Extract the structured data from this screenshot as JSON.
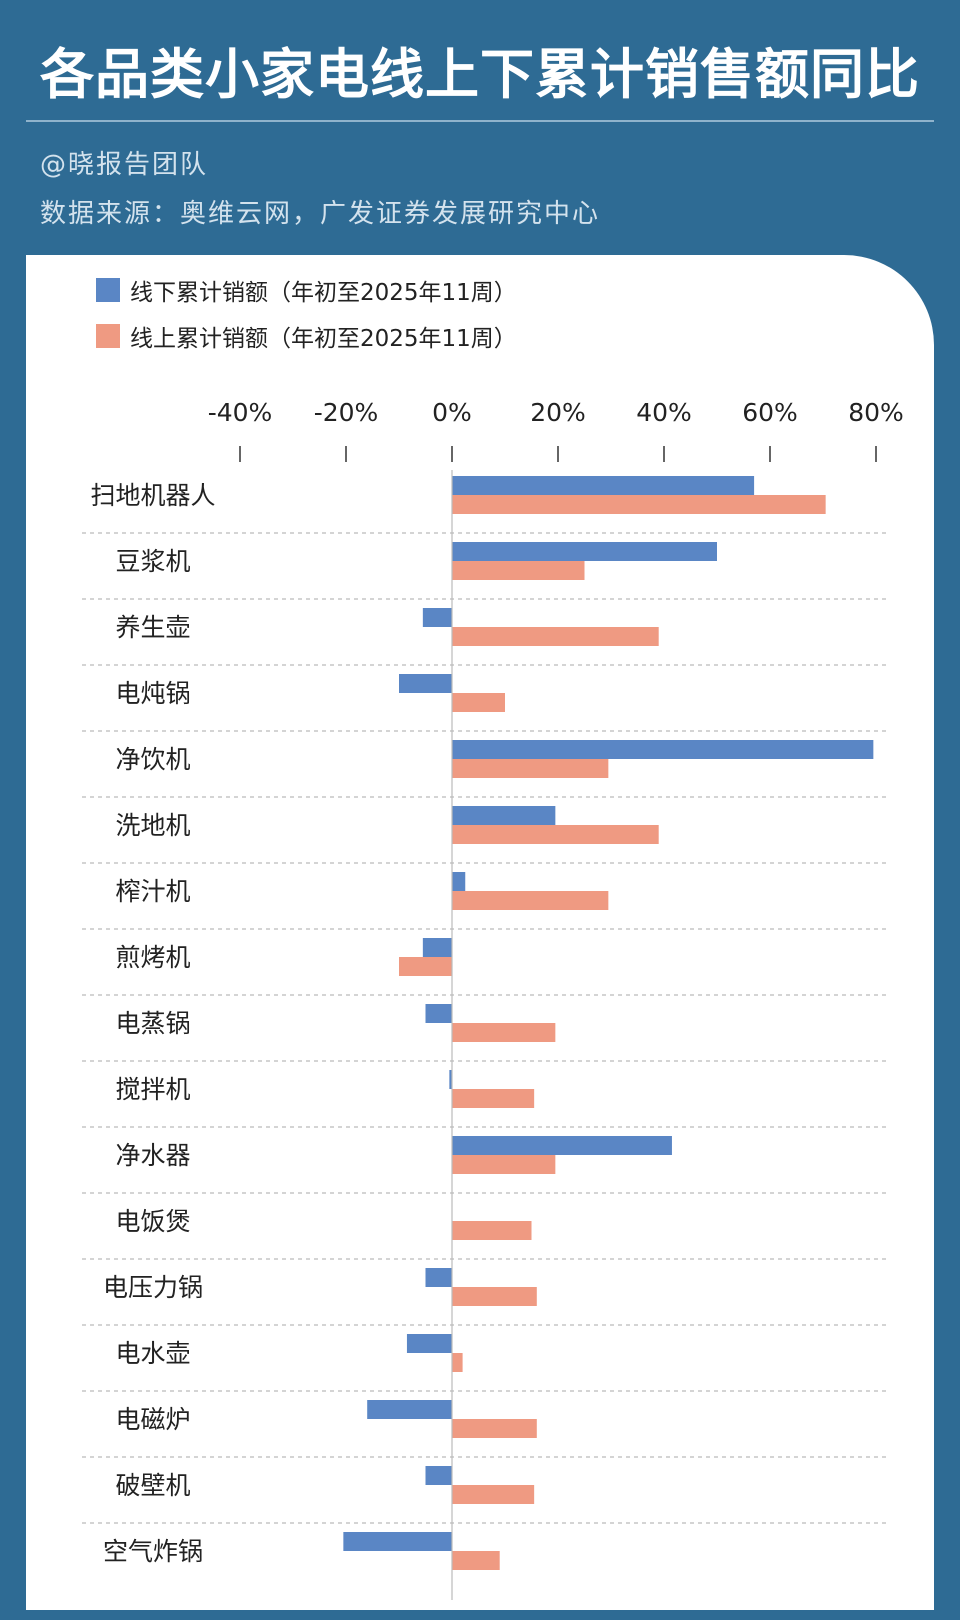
{
  "title": "各品类小家电线上下累计销售额同比",
  "author": "@晓报告团队",
  "source": "数据来源：奥维云网，广发证券发展研究中心",
  "colors": {
    "offline": "#5a86c5",
    "online": "#ef9a82",
    "background": "#2e6b94"
  },
  "chart_data": {
    "type": "bar",
    "orientation": "horizontal",
    "categories": [
      "扫地机器人",
      "豆浆机",
      "养生壶",
      "电炖锅",
      "净饮机",
      "洗地机",
      "榨汁机",
      "煎烤机",
      "电蒸锅",
      "搅拌机",
      "净水器",
      "电饭煲",
      "电压力锅",
      "电水壶",
      "电磁炉",
      "破壁机",
      "空气炸锅"
    ],
    "series": [
      {
        "name": "线下累计销额（年初至2025年11周）",
        "color": "#5a86c5",
        "values": [
          57,
          50,
          -5.5,
          -10,
          79.5,
          19.5,
          2.5,
          -5.5,
          -5,
          -0.5,
          41.5,
          0,
          -5,
          -8.5,
          -16,
          -5,
          -20.5
        ]
      },
      {
        "name": "线上累计销额（年初至2025年11周）",
        "color": "#ef9a82",
        "values": [
          70.5,
          25,
          39,
          10,
          29.5,
          39,
          29.5,
          -10,
          19.5,
          15.5,
          19.5,
          15,
          16,
          2,
          16,
          15.5,
          9
        ]
      }
    ],
    "xticks": [
      "-40%",
      "-20%",
      "0%",
      "20%",
      "40%",
      "60%",
      "80%"
    ],
    "xlim": [
      -40,
      80
    ],
    "legend": "top-left",
    "grid": "horizontal dashed separators"
  }
}
